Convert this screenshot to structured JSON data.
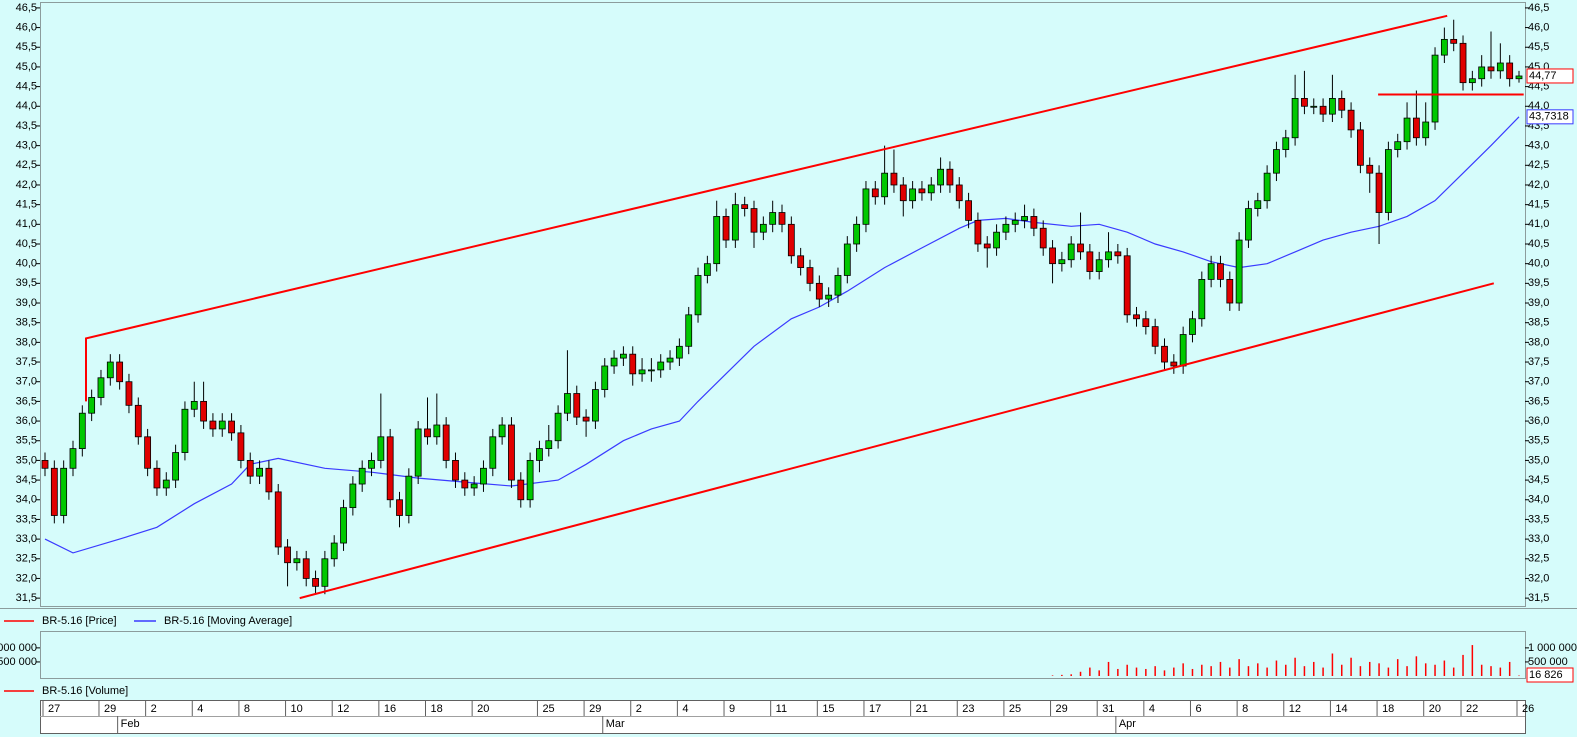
{
  "chart_data": {
    "type": "candlestick",
    "series": [
      {
        "name": "BR-5.16 [Price]",
        "color": "#ff0000",
        "up_color": "#00c800",
        "down_color": "#e00000",
        "last_value_label": "44,77",
        "open": [
          35.0,
          34.8,
          33.6,
          34.8,
          35.3,
          36.2,
          36.6,
          37.1,
          37.5,
          37.0,
          36.4,
          35.6,
          34.8,
          34.3,
          34.5,
          35.2,
          36.3,
          36.5,
          36.0,
          35.8,
          36.0,
          35.7,
          35.0,
          34.6,
          34.8,
          34.2,
          32.8,
          32.4,
          32.5,
          32.0,
          31.8,
          32.5,
          32.9,
          33.8,
          34.4,
          34.8,
          35.0,
          35.6,
          34.0,
          33.6,
          34.6,
          35.8,
          35.6,
          35.9,
          35.0,
          34.5,
          34.3,
          34.4,
          34.8,
          35.6,
          35.9,
          34.5,
          34.0,
          35.0,
          35.3,
          35.5,
          36.2,
          36.7,
          36.1,
          36.0,
          36.8,
          37.4,
          37.6,
          37.7,
          37.2,
          37.3,
          37.3,
          37.5,
          37.6,
          37.9,
          38.7,
          39.7,
          40.0,
          41.2,
          40.6,
          41.5,
          41.4,
          40.8,
          41.0,
          41.3,
          41.0,
          40.2,
          39.9,
          39.5,
          39.1,
          39.2,
          39.7,
          40.5,
          41.0,
          41.9,
          41.7,
          42.3,
          42.0,
          41.6,
          41.9,
          41.8,
          42.0,
          42.4,
          42.0,
          41.6,
          41.1,
          40.5,
          40.4,
          40.8,
          41.0,
          41.1,
          41.2,
          40.9,
          40.4,
          40.0,
          40.1,
          40.5,
          40.3,
          39.8,
          40.1,
          40.3,
          40.2,
          38.7,
          38.6,
          38.4,
          37.9,
          37.5,
          37.4,
          38.2,
          38.6,
          39.6,
          40.0,
          39.6,
          39.0,
          40.6,
          41.4,
          41.6,
          42.3,
          42.9,
          43.2,
          44.2,
          44.0,
          44.0,
          43.8,
          44.2,
          43.9,
          43.4,
          42.5,
          42.3,
          41.3,
          42.9,
          43.1,
          43.7,
          43.2,
          43.6,
          45.3,
          45.7,
          45.6,
          44.6,
          44.7,
          45.0,
          44.9,
          45.1,
          44.7
        ],
        "high": [
          35.2,
          35.0,
          35.0,
          35.5,
          36.4,
          36.8,
          37.3,
          37.7,
          37.7,
          37.2,
          36.6,
          35.8,
          35.0,
          34.7,
          35.4,
          36.5,
          37.0,
          37.0,
          36.2,
          36.2,
          36.2,
          35.9,
          35.2,
          35.0,
          35.0,
          34.4,
          33.0,
          32.7,
          32.7,
          32.2,
          32.7,
          33.1,
          34.0,
          34.6,
          35.0,
          35.2,
          36.7,
          35.8,
          34.2,
          34.8,
          36.0,
          36.6,
          36.7,
          36.1,
          35.2,
          34.7,
          34.6,
          35.0,
          35.8,
          36.1,
          36.1,
          34.7,
          35.2,
          35.5,
          35.9,
          36.4,
          37.8,
          36.9,
          36.3,
          37.0,
          37.6,
          37.8,
          37.9,
          37.9,
          37.6,
          37.6,
          37.7,
          37.8,
          38.1,
          38.9,
          39.9,
          40.2,
          41.6,
          41.4,
          41.8,
          41.7,
          41.6,
          41.2,
          41.6,
          41.5,
          41.2,
          40.4,
          40.1,
          39.7,
          39.4,
          39.9,
          40.7,
          41.2,
          42.1,
          42.1,
          43.0,
          42.9,
          42.2,
          42.1,
          42.1,
          42.2,
          42.7,
          42.6,
          42.2,
          41.8,
          41.3,
          40.7,
          41.0,
          41.2,
          41.3,
          41.5,
          41.4,
          41.1,
          40.6,
          40.3,
          40.7,
          41.3,
          40.5,
          40.3,
          40.8,
          40.5,
          40.4,
          38.9,
          38.8,
          38.6,
          38.1,
          37.7,
          38.4,
          38.8,
          39.8,
          40.2,
          40.2,
          39.8,
          40.8,
          41.6,
          41.8,
          42.5,
          43.1,
          43.4,
          44.8,
          44.9,
          44.2,
          44.2,
          44.8,
          44.4,
          44.1,
          43.6,
          42.7,
          42.5,
          43.1,
          43.3,
          44.1,
          44.4,
          44.1,
          45.5,
          46.0,
          46.2,
          45.8,
          44.9,
          45.3,
          45.9,
          45.6,
          45.3,
          44.9
        ],
        "low": [
          34.6,
          33.4,
          33.4,
          34.6,
          35.1,
          36.0,
          36.4,
          36.9,
          36.8,
          36.2,
          35.4,
          34.6,
          34.1,
          34.1,
          34.3,
          35.0,
          36.1,
          35.8,
          35.6,
          35.6,
          35.5,
          34.8,
          34.4,
          34.4,
          34.0,
          32.6,
          31.8,
          32.2,
          31.8,
          31.6,
          31.6,
          32.3,
          32.7,
          33.6,
          34.2,
          34.6,
          34.8,
          33.8,
          33.3,
          33.4,
          34.4,
          35.4,
          35.4,
          34.8,
          34.3,
          34.1,
          34.1,
          34.2,
          34.6,
          35.4,
          34.3,
          33.8,
          33.8,
          34.7,
          35.1,
          35.3,
          36.0,
          35.9,
          35.6,
          35.8,
          36.6,
          37.2,
          37.4,
          36.9,
          37.0,
          37.0,
          37.1,
          37.3,
          37.4,
          37.7,
          38.5,
          39.5,
          39.8,
          40.4,
          40.4,
          41.2,
          40.4,
          40.6,
          40.8,
          40.8,
          40.0,
          39.7,
          39.3,
          38.9,
          38.9,
          39.0,
          39.5,
          40.3,
          40.8,
          41.5,
          41.5,
          41.8,
          41.2,
          41.4,
          41.6,
          41.6,
          41.8,
          41.8,
          41.4,
          40.9,
          40.3,
          39.9,
          40.2,
          40.6,
          40.8,
          40.9,
          40.7,
          40.2,
          39.5,
          39.8,
          39.9,
          40.1,
          39.6,
          39.6,
          39.9,
          40.0,
          38.5,
          38.4,
          38.2,
          37.7,
          37.3,
          37.2,
          37.2,
          38.0,
          38.4,
          39.4,
          39.4,
          38.8,
          38.8,
          40.4,
          41.2,
          41.4,
          42.1,
          42.7,
          43.0,
          43.8,
          43.8,
          43.6,
          43.6,
          43.7,
          43.2,
          42.3,
          41.8,
          40.5,
          41.1,
          42.7,
          42.9,
          43.0,
          43.0,
          43.4,
          45.1,
          45.4,
          44.4,
          44.4,
          44.5,
          44.7,
          44.7,
          44.5,
          44.6
        ],
        "close": [
          34.8,
          33.6,
          34.8,
          35.3,
          36.2,
          36.6,
          37.1,
          37.5,
          37.0,
          36.4,
          35.6,
          34.8,
          34.3,
          34.5,
          35.2,
          36.3,
          36.5,
          36.0,
          35.8,
          36.0,
          35.7,
          35.0,
          34.6,
          34.8,
          34.2,
          32.8,
          32.4,
          32.5,
          32.0,
          31.8,
          32.5,
          32.9,
          33.8,
          34.4,
          34.8,
          35.0,
          35.6,
          34.0,
          33.6,
          34.6,
          35.8,
          35.6,
          35.9,
          35.0,
          34.5,
          34.3,
          34.4,
          34.8,
          35.6,
          35.9,
          34.5,
          34.0,
          35.0,
          35.3,
          35.5,
          36.2,
          36.7,
          36.1,
          36.0,
          36.8,
          37.4,
          37.6,
          37.7,
          37.2,
          37.3,
          37.3,
          37.5,
          37.6,
          37.9,
          38.7,
          39.7,
          40.0,
          41.2,
          40.6,
          41.5,
          41.4,
          40.8,
          41.0,
          41.3,
          41.0,
          40.2,
          39.9,
          39.5,
          39.1,
          39.2,
          39.7,
          40.5,
          41.0,
          41.9,
          41.7,
          42.3,
          42.0,
          41.6,
          41.9,
          41.8,
          42.0,
          42.4,
          42.0,
          41.6,
          41.1,
          40.5,
          40.4,
          40.8,
          41.0,
          41.1,
          41.2,
          40.9,
          40.4,
          40.0,
          40.1,
          40.5,
          40.3,
          39.8,
          40.1,
          40.3,
          40.2,
          38.7,
          38.6,
          38.4,
          37.9,
          37.5,
          37.4,
          38.2,
          38.6,
          39.6,
          40.0,
          39.6,
          39.0,
          40.6,
          41.4,
          41.6,
          42.3,
          42.9,
          43.2,
          44.2,
          44.0,
          44.0,
          43.8,
          44.2,
          43.9,
          43.4,
          42.5,
          42.3,
          41.3,
          42.9,
          43.1,
          43.7,
          43.2,
          43.6,
          45.3,
          45.7,
          45.6,
          44.6,
          44.7,
          45.0,
          44.9,
          45.1,
          44.7,
          44.77
        ]
      },
      {
        "name": "BR-5.16 [Moving Average]",
        "type": "line",
        "color": "#3a3aff",
        "last_value_label": "43,7318",
        "x": [
          0,
          3,
          8,
          12,
          16,
          20,
          22,
          25,
          30,
          35,
          40,
          45,
          50,
          55,
          58,
          62,
          65,
          68,
          70,
          73,
          76,
          80,
          83,
          86,
          90,
          94,
          98,
          100,
          103,
          106,
          110,
          113,
          116,
          119,
          122,
          125,
          128,
          131,
          134,
          137,
          140,
          143,
          146,
          149,
          152,
          155,
          158
        ],
        "values": [
          33.0,
          32.65,
          33.0,
          33.3,
          33.9,
          34.4,
          34.9,
          35.05,
          34.8,
          34.7,
          34.55,
          34.45,
          34.35,
          34.5,
          34.9,
          35.5,
          35.8,
          36.0,
          36.5,
          37.2,
          37.9,
          38.6,
          38.9,
          39.3,
          39.9,
          40.4,
          40.9,
          41.1,
          41.15,
          41.05,
          40.95,
          41.0,
          40.8,
          40.5,
          40.3,
          40.05,
          39.9,
          40.0,
          40.3,
          40.6,
          40.8,
          40.95,
          41.2,
          41.6,
          42.3,
          43.0,
          43.7318
        ]
      }
    ],
    "ylim": [
      31.3,
      46.65
    ],
    "yticks": [
      {
        "value": 46.5,
        "label": "46,5"
      },
      {
        "value": 46,
        "label": "46,0"
      },
      {
        "value": 45.5,
        "label": "45,5"
      },
      {
        "value": 45,
        "label": "45,0"
      },
      {
        "value": 44.5,
        "label": "44,5"
      },
      {
        "value": 44,
        "label": "44,0"
      },
      {
        "value": 43.5,
        "label": "43,5"
      },
      {
        "value": 43,
        "label": "43,0"
      },
      {
        "value": 42.5,
        "label": "42,5"
      },
      {
        "value": 42,
        "label": "42,0"
      },
      {
        "value": 41.5,
        "label": "41,5"
      },
      {
        "value": 41,
        "label": "41,0"
      },
      {
        "value": 40.5,
        "label": "40,5"
      },
      {
        "value": 40,
        "label": "40,0"
      },
      {
        "value": 39.5,
        "label": "39,5"
      },
      {
        "value": 39,
        "label": "39,0"
      },
      {
        "value": 38.5,
        "label": "38,5"
      },
      {
        "value": 38,
        "label": "38,0"
      },
      {
        "value": 37.5,
        "label": "37,5"
      },
      {
        "value": 37,
        "label": "37,0"
      },
      {
        "value": 36.5,
        "label": "36,5"
      },
      {
        "value": 36,
        "label": "36,0"
      },
      {
        "value": 35.5,
        "label": "35,5"
      },
      {
        "value": 35,
        "label": "35,0"
      },
      {
        "value": 34.5,
        "label": "34,5"
      },
      {
        "value": 34,
        "label": "34,0"
      },
      {
        "value": 33.5,
        "label": "33,5"
      },
      {
        "value": 33,
        "label": "33,0"
      },
      {
        "value": 32.5,
        "label": "32,5"
      },
      {
        "value": 32,
        "label": "32,0"
      },
      {
        "value": 31.5,
        "label": "31,5"
      }
    ],
    "trend_lines": [
      {
        "color": "#ff0000",
        "points": [
          [
            4.4,
            36.5
          ],
          [
            4.4,
            38.1
          ],
          [
            150.3,
            46.3
          ]
        ]
      },
      {
        "color": "#ff0000",
        "points": [
          [
            27.3,
            31.5
          ],
          [
            155.3,
            39.5
          ]
        ]
      },
      {
        "color": "#ff0000",
        "points": [
          [
            142.9,
            44.3
          ],
          [
            158.5,
            44.3
          ]
        ]
      }
    ],
    "x_day_ticks": [
      {
        "value": 0,
        "label": "27"
      },
      {
        "value": 6,
        "label": "29"
      },
      {
        "value": 11,
        "label": "2"
      },
      {
        "value": 16,
        "label": "4"
      },
      {
        "value": 21,
        "label": "8"
      },
      {
        "value": 26,
        "label": "10"
      },
      {
        "value": 31,
        "label": "12"
      },
      {
        "value": 36,
        "label": "16"
      },
      {
        "value": 41,
        "label": "18"
      },
      {
        "value": 46,
        "label": "20"
      },
      {
        "value": 53,
        "label": "25"
      },
      {
        "value": 58,
        "label": "29"
      },
      {
        "value": 63,
        "label": "2"
      },
      {
        "value": 68,
        "label": "4"
      },
      {
        "value": 73,
        "label": "9"
      },
      {
        "value": 78,
        "label": "11"
      },
      {
        "value": 83,
        "label": "15"
      },
      {
        "value": 88,
        "label": "17"
      },
      {
        "value": 93,
        "label": "21"
      },
      {
        "value": 98,
        "label": "23"
      },
      {
        "value": 103,
        "label": "25"
      },
      {
        "value": 108,
        "label": "29"
      },
      {
        "value": 113,
        "label": "31"
      },
      {
        "value": 118,
        "label": "4"
      },
      {
        "value": 123,
        "label": "6"
      },
      {
        "value": 128,
        "label": "8"
      },
      {
        "value": 133,
        "label": "12"
      },
      {
        "value": 138,
        "label": "14"
      },
      {
        "value": 143,
        "label": "18"
      },
      {
        "value": 148,
        "label": "20"
      },
      {
        "value": 152,
        "label": "22"
      },
      {
        "value": 158,
        "label": "26"
      }
    ],
    "x_month_ticks": [
      {
        "value": 8,
        "label": "Feb"
      },
      {
        "value": 60,
        "label": "Mar"
      },
      {
        "value": 115,
        "label": "Apr"
      }
    ],
    "volume": {
      "type": "bar",
      "name": "BR-5.16 [Volume]",
      "color": "#ff0000",
      "last_value_label": "16 826",
      "x": [
        108,
        109,
        110,
        111,
        112,
        113,
        114,
        115,
        116,
        117,
        118,
        119,
        120,
        121,
        122,
        123,
        124,
        125,
        126,
        127,
        128,
        129,
        130,
        131,
        132,
        133,
        134,
        135,
        136,
        137,
        138,
        139,
        140,
        141,
        142,
        143,
        144,
        145,
        146,
        147,
        148,
        149,
        150,
        151,
        152,
        153,
        154,
        155,
        156,
        157,
        158
      ],
      "values": [
        20000,
        40000,
        60000,
        150000,
        300000,
        200000,
        500000,
        250000,
        400000,
        300000,
        250000,
        350000,
        200000,
        300000,
        450000,
        250000,
        400000,
        350000,
        500000,
        300000,
        600000,
        350000,
        450000,
        300000,
        550000,
        400000,
        650000,
        350000,
        500000,
        300000,
        800000,
        400000,
        650000,
        350000,
        500000,
        450000,
        300000,
        600000,
        350000,
        700000,
        450000,
        400000,
        550000,
        300000,
        750000,
        1100000,
        400000,
        350000,
        300000,
        500000,
        16826
      ],
      "ylim": [
        0,
        1600000
      ],
      "yticks": [
        {
          "value": 1000000,
          "label": "1 000 000"
        },
        {
          "value": 500000,
          "label": "500 000"
        }
      ]
    }
  }
}
